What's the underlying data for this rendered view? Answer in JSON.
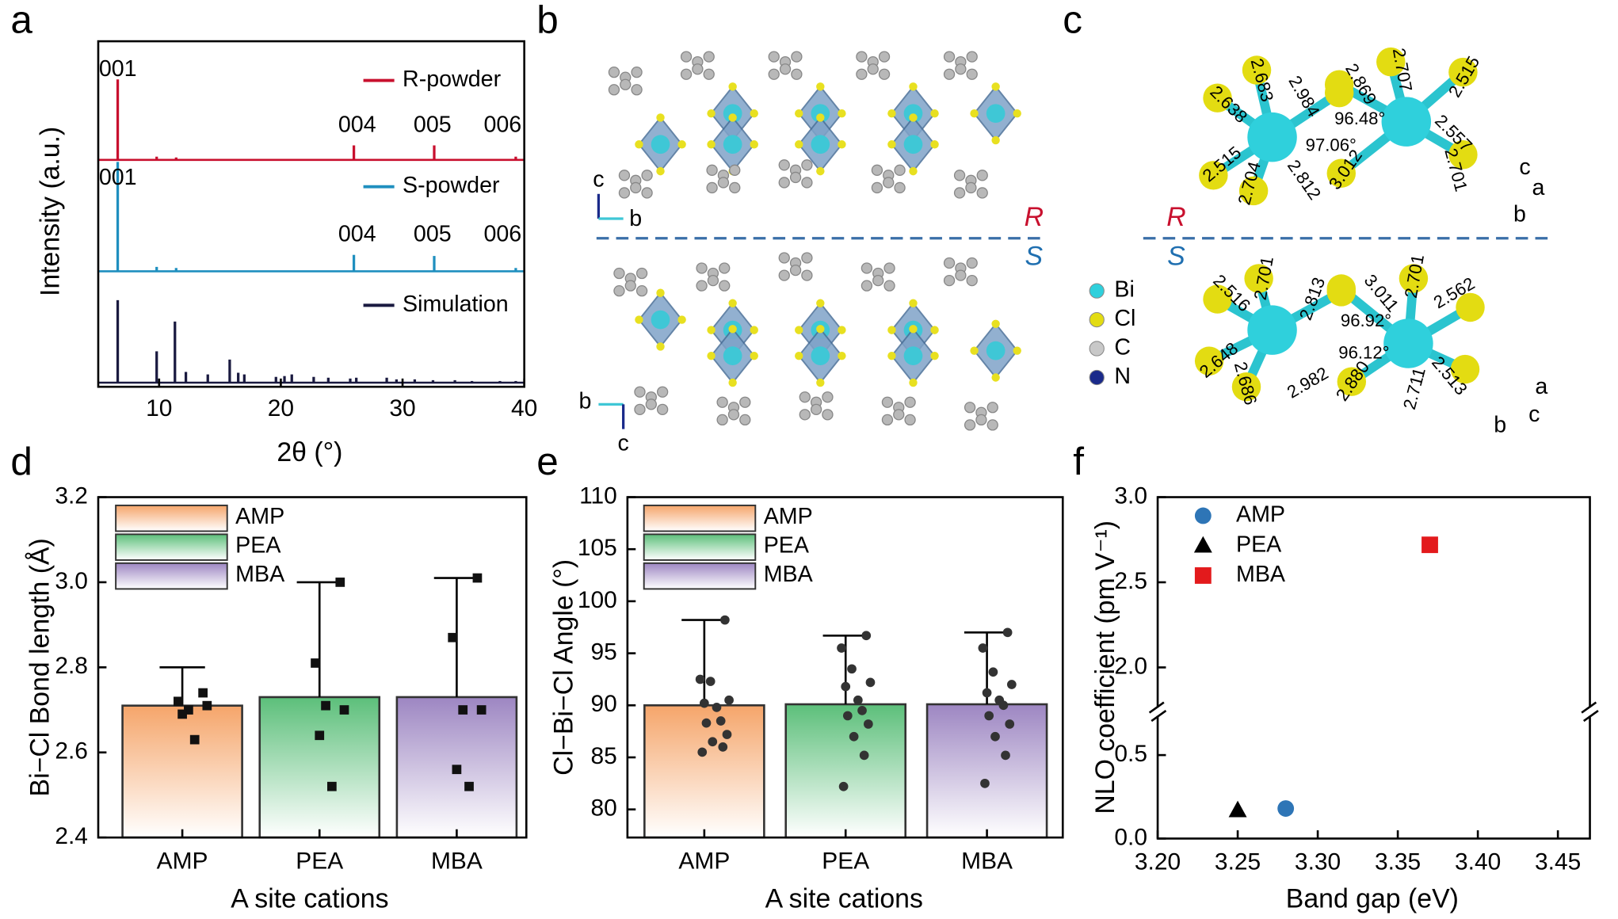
{
  "chart_data": [
    {
      "type": "xrd",
      "panel": "a",
      "xlabel": "2θ (°)",
      "ylabel": "Intensity (a.u.)",
      "xlim": [
        5,
        40
      ],
      "xticks": [
        10,
        20,
        30,
        40
      ],
      "series": [
        {
          "name": "R-powder",
          "color": "#c8102e",
          "x": [
            6.6,
            9.8,
            11.4,
            26.0,
            32.6,
            39.3
          ],
          "values": [
            100,
            4,
            3,
            18,
            18,
            4
          ]
        },
        {
          "name": "S-powder",
          "color": "#1f8fbf",
          "x": [
            6.6,
            9.8,
            11.4,
            26.0,
            32.6,
            39.3
          ],
          "values": [
            100,
            4,
            3,
            15,
            14,
            3
          ]
        },
        {
          "name": "Simulation",
          "color": "#1a1a40",
          "x": [
            6.6,
            9.8,
            11.3,
            12.2,
            14.0,
            15.8,
            16.5,
            17.0,
            19.6,
            20.3,
            20.9,
            22.7,
            23.9,
            25.7,
            26.2,
            28.7,
            29.5,
            31.0,
            32.5,
            34.3,
            35.7,
            38.0,
            39.3
          ],
          "values": [
            100,
            38,
            74,
            13,
            10,
            28,
            12,
            10,
            7,
            8,
            10,
            7,
            6,
            5,
            6,
            6,
            4,
            4,
            3,
            3,
            2,
            2,
            2
          ]
        }
      ],
      "annotations": [
        "001",
        "004",
        "005",
        "006",
        "001",
        "004",
        "005",
        "006"
      ]
    },
    {
      "type": "bar_dots",
      "panel": "d",
      "xlabel": "A site cations",
      "ylabel": "Bi−Cl Bond length (Å)",
      "categories": [
        "AMP",
        "PEA",
        "MBA"
      ],
      "colors": [
        "#f5a56a",
        "#5cbf7a",
        "#9d86c2"
      ],
      "values": [
        2.71,
        2.73,
        2.73
      ],
      "errors": [
        0.09,
        0.27,
        0.28
      ],
      "marker": "square",
      "points": [
        [
          2.74,
          2.72,
          2.7,
          2.71,
          2.69,
          2.63
        ],
        [
          3.0,
          2.81,
          2.71,
          2.7,
          2.64,
          2.52
        ],
        [
          3.01,
          2.87,
          2.7,
          2.7,
          2.56,
          2.52
        ]
      ],
      "ylim": [
        2.4,
        3.2
      ],
      "yticks": [
        2.4,
        2.6,
        2.8,
        {
          "value": 3,
          "label": "3.0"
        },
        3.2
      ]
    },
    {
      "type": "bar_dots",
      "panel": "e",
      "xlabel": "A site cations",
      "ylabel": "Cl−Bi−Cl Angle (°)",
      "categories": [
        "AMP",
        "PEA",
        "MBA"
      ],
      "colors": [
        "#f5a56a",
        "#5cbf7a",
        "#9d86c2"
      ],
      "values": [
        90.0,
        90.1,
        90.1
      ],
      "errors": [
        8.2,
        6.6,
        6.9
      ],
      "marker": "circle",
      "points": [
        [
          98.2,
          92.5,
          92.3,
          90.5,
          90.2,
          89.8,
          88.5,
          88.3,
          87.2,
          86.5,
          86.0,
          85.5
        ],
        [
          96.7,
          95.5,
          93.5,
          92.2,
          91.8,
          90.5,
          89.5,
          89.0,
          88.2,
          87.0,
          85.2,
          82.2
        ],
        [
          97.0,
          95.5,
          93.2,
          92.0,
          91.2,
          90.5,
          90.0,
          89.0,
          88.2,
          87.0,
          85.2,
          82.5
        ]
      ],
      "ylim": [
        77.3,
        110
      ],
      "yticks": [
        80,
        85,
        90,
        95,
        100,
        105,
        110
      ]
    },
    {
      "type": "scatter",
      "panel": "f",
      "xlabel": "Band gap (eV)",
      "ylabel": "NLO coefficient (pm V⁻¹)",
      "xlim": [
        3.2,
        3.47
      ],
      "xticks": [
        {
          "value": 3.2,
          "label": "3.20"
        },
        {
          "value": 3.25,
          "label": "3.25"
        },
        {
          "value": 3.3,
          "label": "3.30"
        },
        {
          "value": 3.35,
          "label": "3.35"
        },
        {
          "value": 3.4,
          "label": "3.40"
        },
        {
          "value": 3.45,
          "label": "3.45"
        }
      ],
      "ylim": [
        0,
        3.0
      ],
      "ybreak": [
        0.76,
        1.74
      ],
      "yticks": [
        {
          "value": 0,
          "label": "0.0"
        },
        0.5,
        {
          "value": 2,
          "label": "2.0"
        },
        2.5,
        {
          "value": 3,
          "label": "3.0"
        }
      ],
      "series": [
        {
          "name": "AMP",
          "color": "#2e75b6",
          "marker": "circle",
          "x": [
            3.28
          ],
          "values": [
            0.18
          ]
        },
        {
          "name": "PEA",
          "color": "#000000",
          "marker": "triangle",
          "x": [
            3.25
          ],
          "values": [
            0.17
          ]
        },
        {
          "name": "MBA",
          "color": "#e31a1c",
          "marker": "square",
          "x": [
            3.37
          ],
          "values": [
            2.72
          ]
        }
      ]
    }
  ],
  "structures": {
    "b": {
      "panel": "b",
      "top": "R",
      "bottom": "S",
      "axes": [
        "c",
        "b",
        "b",
        "c"
      ]
    },
    "c": {
      "panel": "c",
      "top": "R",
      "bottom": "S",
      "axes": [
        "c",
        "a",
        "b",
        "a",
        "b",
        "c"
      ],
      "legend": [
        "Bi",
        "Cl",
        "C",
        "N"
      ],
      "labels": [
        "2.638",
        "2.683",
        "2.984",
        "2.869",
        "2.707",
        "2.515",
        "2.515",
        "2.557",
        "2.704",
        "2.812",
        "3.012",
        "2.701",
        "96.48°",
        "97.06°",
        "2.516",
        "2.701",
        "2.813",
        "3.011",
        "2.701",
        "2.562",
        "2.648",
        "2.686",
        "2.982",
        "2.880",
        "2.711",
        "2.513",
        "96.92°",
        "96.12°"
      ]
    }
  }
}
